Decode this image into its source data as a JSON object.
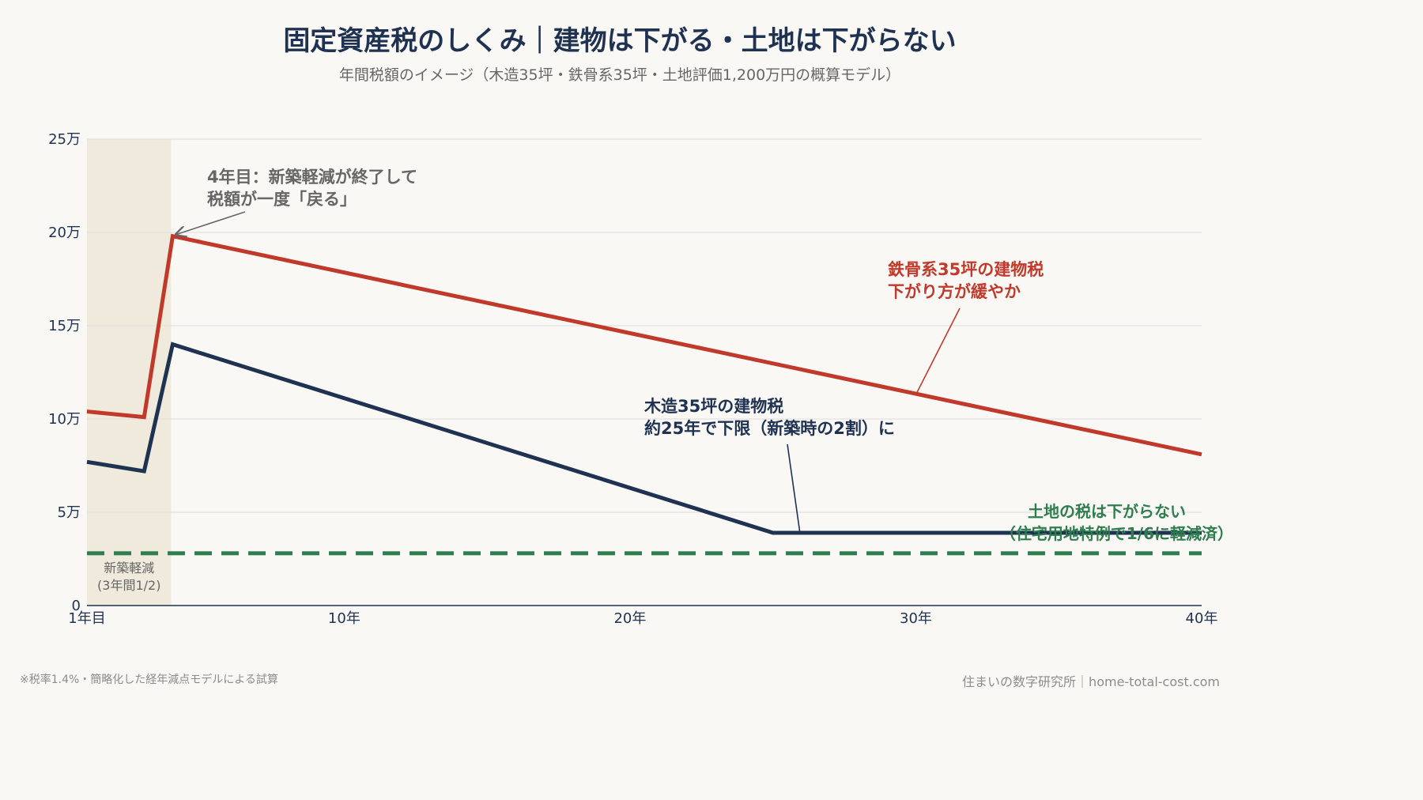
{
  "title": "固定資産税のしくみ｜建物は下がる・土地は下がらない",
  "subtitle": "年間税額のイメージ（木造35坪・鉄骨系35坪・土地評価1,200万円の概算モデル）",
  "footnote_left": "※税率1.4%・簡略化した経年減点モデルによる試算",
  "footnote_right": "住まいの数字研究所｜home-total-cost.com",
  "colors": {
    "steel": "#c0392b",
    "wood": "#1f3251",
    "land": "#2e7d4f",
    "shade": "#efeadb",
    "grid": "#dddddd",
    "annotation_gray": "#666666"
  },
  "chart_data": {
    "type": "line",
    "title": "固定資産税のしくみ｜建物は下がる・土地は下がらない",
    "xlabel": "",
    "ylabel": "",
    "xlim": [
      1,
      40
    ],
    "ylim": [
      0,
      250000
    ],
    "grid": true,
    "x_ticks": [
      {
        "value": 1,
        "label": "1年目"
      },
      {
        "value": 10,
        "label": "10年"
      },
      {
        "value": 20,
        "label": "20年"
      },
      {
        "value": 30,
        "label": "30年"
      },
      {
        "value": 40,
        "label": "40年"
      }
    ],
    "y_ticks": [
      {
        "value": 0,
        "label": "0"
      },
      {
        "value": 50000,
        "label": "5万"
      },
      {
        "value": 100000,
        "label": "10万"
      },
      {
        "value": 150000,
        "label": "15万"
      },
      {
        "value": 200000,
        "label": "20万"
      },
      {
        "value": 250000,
        "label": "25万"
      }
    ],
    "series": [
      {
        "key": "steel",
        "style": "solid",
        "points": [
          [
            1,
            104000
          ],
          [
            3,
            101000
          ],
          [
            4,
            198000
          ],
          [
            40,
            81000
          ]
        ]
      },
      {
        "key": "wood",
        "style": "solid",
        "points": [
          [
            1,
            77000
          ],
          [
            3,
            72000
          ],
          [
            4,
            140000
          ],
          [
            25,
            39000
          ],
          [
            40,
            39000
          ]
        ]
      },
      {
        "key": "land",
        "style": "dashed",
        "points": [
          [
            1,
            28000
          ],
          [
            40,
            28000
          ]
        ]
      }
    ],
    "shaded_region": {
      "x_range": [
        1,
        4
      ],
      "label_line1": "新築軽減",
      "label_line2": "(3年間1/2)"
    },
    "annotations": {
      "year4": {
        "line1": "4年目：新築軽減が終了して",
        "line2": "税額が一度「戻る」",
        "target": [
          4,
          198000
        ]
      },
      "steel": {
        "line1": "鉄骨系35坪の建物税",
        "line2": "下がり方が緩やか",
        "target": [
          30,
          113000
        ]
      },
      "wood": {
        "line1": "木造35坪の建物税",
        "line2": "約25年で下限（新築時の2割）に",
        "target": [
          26,
          39000
        ]
      },
      "land": {
        "line1": "土地の税は下がらない",
        "line2": "（住宅用地特例で1/6に軽減済）"
      }
    }
  }
}
